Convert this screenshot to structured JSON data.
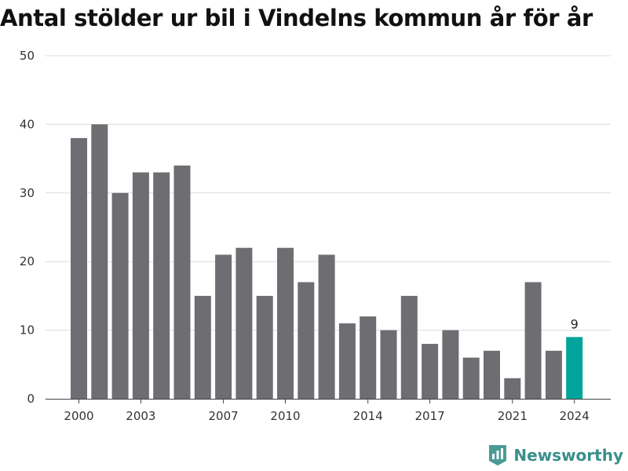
{
  "chart_data": {
    "type": "bar",
    "title": "Antal stölder ur bil i Vindelns kommun år för år",
    "xlabel": "",
    "ylabel": "",
    "categories": [
      2000,
      2001,
      2002,
      2003,
      2004,
      2005,
      2006,
      2007,
      2008,
      2009,
      2010,
      2011,
      2012,
      2013,
      2014,
      2015,
      2016,
      2017,
      2018,
      2019,
      2020,
      2021,
      2022,
      2023,
      2024
    ],
    "values": [
      38,
      40,
      30,
      33,
      33,
      34,
      15,
      21,
      22,
      15,
      22,
      17,
      21,
      11,
      12,
      10,
      15,
      8,
      10,
      6,
      7,
      3,
      17,
      7,
      9
    ],
    "ylim": [
      0,
      50
    ],
    "y_ticks": [
      0,
      10,
      20,
      30,
      40,
      50
    ],
    "x_ticks": [
      2000,
      2003,
      2007,
      2010,
      2014,
      2017,
      2021,
      2024
    ],
    "highlight": {
      "category": 2024,
      "label": "9"
    },
    "grid": true,
    "colors": {
      "bar": "#6e6d72",
      "highlight": "#00a49a",
      "grid": "#dcdcdc"
    }
  },
  "brand": {
    "name": "Newsworthy",
    "icon": "newsworthy-logo-icon",
    "color": "#3a8f8a"
  }
}
